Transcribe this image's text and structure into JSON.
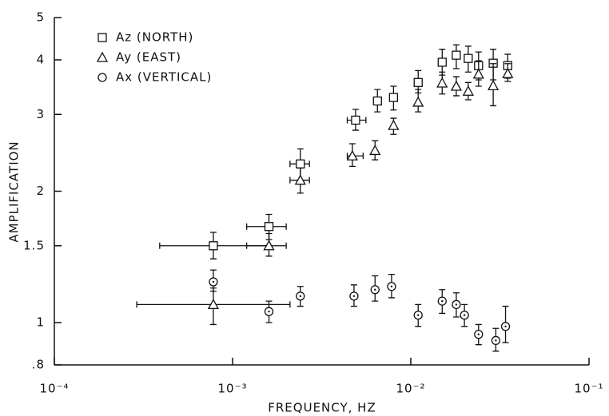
{
  "chart_data": {
    "type": "scatter",
    "xlabel": "FREQUENCY, HZ",
    "ylabel": "AMPLIFICATION",
    "xlog": true,
    "ylog": true,
    "xlim": [
      0.0001,
      0.1
    ],
    "xticks": [
      {
        "value": 0.0001,
        "label": "10⁻⁴"
      },
      {
        "value": 0.001,
        "label": "10⁻³"
      },
      {
        "value": 0.01,
        "label": "10⁻²"
      },
      {
        "value": 0.1,
        "label": "10⁻¹"
      }
    ],
    "ylim": [
      0.8,
      5
    ],
    "yticks": [
      {
        "value": 0.8,
        "label": ".8"
      },
      1,
      1.5,
      2,
      3,
      4,
      5
    ],
    "legend": "upper left",
    "series": [
      {
        "name": "Az (NORTH)",
        "marker": "square",
        "color": "#111111",
        "x": [
          0.00078,
          0.0016,
          0.0024,
          0.0049,
          0.0065,
          0.008,
          0.011,
          0.015,
          0.018,
          0.021,
          0.024,
          0.029,
          0.035
        ],
        "values": [
          1.5,
          1.66,
          2.31,
          2.91,
          3.22,
          3.28,
          3.55,
          3.95,
          4.1,
          4.03,
          3.88,
          3.93,
          3.88
        ],
        "ylow": [
          1.4,
          1.55,
          2.12,
          2.76,
          3.04,
          3.07,
          3.36,
          3.69,
          3.82,
          3.75,
          3.6,
          3.6,
          3.63
        ],
        "yhigh": [
          1.61,
          1.77,
          2.5,
          3.08,
          3.42,
          3.48,
          3.78,
          4.23,
          4.33,
          4.3,
          4.17,
          4.23,
          4.12
        ],
        "xlow": [
          0.00039,
          0.0012,
          0.0021,
          0.0044,
          null,
          null,
          null,
          null,
          null,
          null,
          null,
          null,
          null
        ],
        "xhigh": [
          0.0016,
          0.002,
          0.0027,
          0.0056,
          null,
          null,
          null,
          null,
          null,
          null,
          null,
          null,
          null
        ]
      },
      {
        "name": "Ay (EAST)",
        "marker": "triangle",
        "color": "#111111",
        "x": [
          0.00078,
          0.0016,
          0.0024,
          0.0047,
          0.0063,
          0.008,
          0.011,
          0.015,
          0.018,
          0.021,
          0.024,
          0.029,
          0.035
        ],
        "values": [
          1.1,
          1.5,
          2.12,
          2.41,
          2.48,
          2.83,
          3.2,
          3.54,
          3.48,
          3.39,
          3.71,
          3.49,
          3.72
        ],
        "ylow": [
          0.99,
          1.42,
          1.98,
          2.28,
          2.36,
          2.7,
          3.04,
          3.34,
          3.31,
          3.24,
          3.48,
          3.14,
          3.57
        ],
        "yhigh": [
          1.2,
          1.6,
          2.26,
          2.57,
          2.61,
          2.94,
          3.42,
          3.75,
          3.66,
          3.55,
          3.98,
          3.92,
          3.92
        ],
        "xlow": [
          0.00029,
          0.0012,
          0.0021,
          0.0044,
          null,
          null,
          null,
          null,
          null,
          null,
          null,
          null,
          null
        ],
        "xhigh": [
          0.0021,
          0.002,
          0.0027,
          0.0054,
          null,
          null,
          null,
          null,
          null,
          null,
          null,
          null,
          null
        ]
      },
      {
        "name": "Ax (VERTICAL)",
        "marker": "circle",
        "color": "#111111",
        "x": [
          0.00078,
          0.0016,
          0.0024,
          0.0048,
          0.0063,
          0.0078,
          0.011,
          0.015,
          0.018,
          0.02,
          0.024,
          0.03,
          0.034
        ],
        "values": [
          1.24,
          1.06,
          1.15,
          1.15,
          1.19,
          1.21,
          1.04,
          1.12,
          1.1,
          1.04,
          0.94,
          0.91,
          0.98
        ],
        "ylow": [
          1.18,
          1.0,
          1.09,
          1.09,
          1.12,
          1.14,
          0.98,
          1.05,
          1.03,
          0.98,
          0.89,
          0.86,
          0.9
        ],
        "yhigh": [
          1.32,
          1.12,
          1.21,
          1.22,
          1.28,
          1.29,
          1.1,
          1.19,
          1.17,
          1.1,
          0.99,
          0.97,
          1.09
        ],
        "xlow": [
          null,
          null,
          null,
          null,
          null,
          null,
          null,
          null,
          null,
          null,
          null,
          null,
          null
        ],
        "xhigh": [
          null,
          null,
          null,
          null,
          null,
          null,
          null,
          null,
          null,
          null,
          null,
          null,
          null
        ]
      }
    ]
  }
}
